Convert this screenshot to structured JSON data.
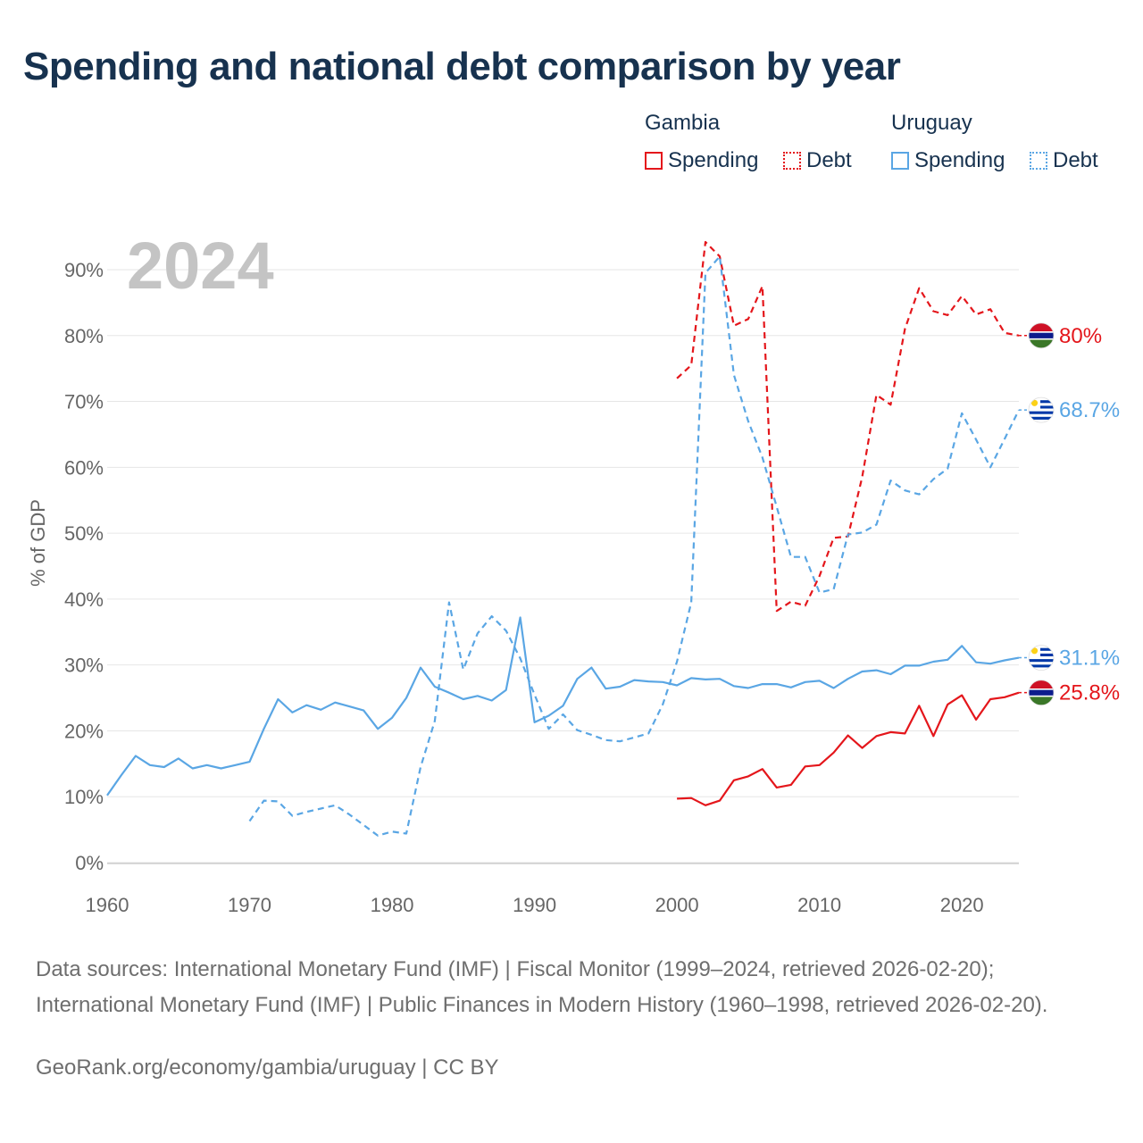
{
  "title": "Spending and national debt comparison by year",
  "legend": {
    "groups": [
      {
        "name": "Gambia",
        "color": "#e4161b",
        "items": [
          {
            "label": "Spending",
            "style": "solid"
          },
          {
            "label": "Debt",
            "style": "dotted"
          }
        ]
      },
      {
        "name": "Uruguay",
        "color": "#5aa6e4",
        "items": [
          {
            "label": "Spending",
            "style": "solid"
          },
          {
            "label": "Debt",
            "style": "dotted"
          }
        ]
      }
    ]
  },
  "sources": "Data sources: International Monetary Fund (IMF) | Fiscal Monitor (1999–2024, retrieved 2026-02-20); International Monetary Fund (IMF) | Public Finances in Modern History (1960–1998, retrieved 2026-02-20).",
  "footer": "GeoRank.org/economy/gambia/uruguay | CC BY",
  "colors": {
    "gambia": "#e4161b",
    "uruguay": "#5aa6e4",
    "title": "#17324f",
    "grid": "#e6e6e6",
    "year": "#c4c4c4"
  },
  "chart_data": {
    "type": "line",
    "year_label": "2024",
    "ylabel": "% of GDP",
    "xlim": [
      1960,
      2024
    ],
    "ylim": [
      0,
      90
    ],
    "xticks": [
      1960,
      1970,
      1980,
      1990,
      2000,
      2010,
      2020
    ],
    "yticks": [
      0,
      10,
      20,
      30,
      40,
      50,
      60,
      70,
      80,
      90
    ],
    "ytick_labels": [
      "0%",
      "10%",
      "20%",
      "30%",
      "40%",
      "50%",
      "60%",
      "70%",
      "80%",
      "90%"
    ],
    "series": [
      {
        "name": "Gambia Debt",
        "country": "gambia",
        "style": "dashed",
        "end_label": "80%",
        "points": [
          [
            2000,
            73.5
          ],
          [
            2001,
            75.5
          ],
          [
            2002,
            94.2
          ],
          [
            2003,
            92.0
          ],
          [
            2004,
            81.5
          ],
          [
            2005,
            82.5
          ],
          [
            2006,
            87.5
          ],
          [
            2007,
            38.2
          ],
          [
            2008,
            39.6
          ],
          [
            2009,
            39.0
          ],
          [
            2010,
            43.5
          ],
          [
            2011,
            49.3
          ],
          [
            2012,
            49.5
          ],
          [
            2013,
            58.5
          ],
          [
            2014,
            71.0
          ],
          [
            2015,
            69.5
          ],
          [
            2016,
            81.0
          ],
          [
            2017,
            87.2
          ],
          [
            2018,
            83.7
          ],
          [
            2019,
            83.1
          ],
          [
            2020,
            86.0
          ],
          [
            2021,
            83.2
          ],
          [
            2022,
            84.0
          ],
          [
            2023,
            80.4
          ],
          [
            2024,
            80.0
          ]
        ]
      },
      {
        "name": "Uruguay Debt",
        "country": "uruguay",
        "style": "dashed",
        "end_label": "68.7%",
        "points": [
          [
            1970,
            6.3
          ],
          [
            1971,
            9.4
          ],
          [
            1972,
            9.3
          ],
          [
            1973,
            7.1
          ],
          [
            1974,
            7.7
          ],
          [
            1975,
            8.2
          ],
          [
            1976,
            8.7
          ],
          [
            1977,
            7.3
          ],
          [
            1978,
            5.7
          ],
          [
            1979,
            4.1
          ],
          [
            1980,
            4.7
          ],
          [
            1981,
            4.4
          ],
          [
            1982,
            14.5
          ],
          [
            1983,
            21.5
          ],
          [
            1984,
            39.5
          ],
          [
            1985,
            29.3
          ],
          [
            1986,
            34.8
          ],
          [
            1987,
            37.4
          ],
          [
            1988,
            35.2
          ],
          [
            1989,
            31.0
          ],
          [
            1990,
            25.5
          ],
          [
            1991,
            20.3
          ],
          [
            1992,
            22.5
          ],
          [
            1993,
            20.1
          ],
          [
            1994,
            19.4
          ],
          [
            1995,
            18.6
          ],
          [
            1996,
            18.4
          ],
          [
            1997,
            19.0
          ],
          [
            1998,
            19.6
          ],
          [
            1999,
            24.0
          ],
          [
            2000,
            30.5
          ],
          [
            2001,
            39.5
          ],
          [
            2002,
            89.5
          ],
          [
            2003,
            92.0
          ],
          [
            2004,
            74.0
          ],
          [
            2005,
            67.0
          ],
          [
            2006,
            61.5
          ],
          [
            2007,
            54.0
          ],
          [
            2008,
            46.4
          ],
          [
            2009,
            46.4
          ],
          [
            2010,
            41.0
          ],
          [
            2011,
            41.5
          ],
          [
            2012,
            49.8
          ],
          [
            2013,
            50.1
          ],
          [
            2014,
            51.3
          ],
          [
            2015,
            58.0
          ],
          [
            2016,
            56.5
          ],
          [
            2017,
            55.9
          ],
          [
            2018,
            58.2
          ],
          [
            2019,
            59.8
          ],
          [
            2020,
            68.2
          ],
          [
            2021,
            64.2
          ],
          [
            2022,
            60.0
          ],
          [
            2023,
            64.3
          ],
          [
            2024,
            68.7
          ]
        ]
      },
      {
        "name": "Uruguay Spending",
        "country": "uruguay",
        "style": "solid",
        "end_label": "31.1%",
        "points": [
          [
            1960,
            10.2
          ],
          [
            1961,
            13.3
          ],
          [
            1962,
            16.2
          ],
          [
            1963,
            14.8
          ],
          [
            1964,
            14.5
          ],
          [
            1965,
            15.8
          ],
          [
            1966,
            14.3
          ],
          [
            1967,
            14.8
          ],
          [
            1968,
            14.3
          ],
          [
            1969,
            14.8
          ],
          [
            1970,
            15.3
          ],
          [
            1971,
            20.3
          ],
          [
            1972,
            24.8
          ],
          [
            1973,
            22.8
          ],
          [
            1974,
            23.9
          ],
          [
            1975,
            23.2
          ],
          [
            1976,
            24.3
          ],
          [
            1977,
            23.7
          ],
          [
            1978,
            23.1
          ],
          [
            1979,
            20.3
          ],
          [
            1980,
            22.0
          ],
          [
            1981,
            25.0
          ],
          [
            1982,
            29.6
          ],
          [
            1983,
            26.7
          ],
          [
            1984,
            25.8
          ],
          [
            1985,
            24.8
          ],
          [
            1986,
            25.3
          ],
          [
            1987,
            24.6
          ],
          [
            1988,
            26.2
          ],
          [
            1989,
            37.2
          ],
          [
            1990,
            21.3
          ],
          [
            1991,
            22.3
          ],
          [
            1992,
            23.8
          ],
          [
            1993,
            27.9
          ],
          [
            1994,
            29.6
          ],
          [
            1995,
            26.4
          ],
          [
            1996,
            26.7
          ],
          [
            1997,
            27.7
          ],
          [
            1998,
            27.5
          ],
          [
            1999,
            27.4
          ],
          [
            2000,
            26.9
          ],
          [
            2001,
            28.0
          ],
          [
            2002,
            27.8
          ],
          [
            2003,
            27.9
          ],
          [
            2004,
            26.8
          ],
          [
            2005,
            26.5
          ],
          [
            2006,
            27.1
          ],
          [
            2007,
            27.1
          ],
          [
            2008,
            26.6
          ],
          [
            2009,
            27.4
          ],
          [
            2010,
            27.6
          ],
          [
            2011,
            26.5
          ],
          [
            2012,
            27.9
          ],
          [
            2013,
            29.0
          ],
          [
            2014,
            29.2
          ],
          [
            2015,
            28.6
          ],
          [
            2016,
            29.9
          ],
          [
            2017,
            29.9
          ],
          [
            2018,
            30.5
          ],
          [
            2019,
            30.8
          ],
          [
            2020,
            32.9
          ],
          [
            2021,
            30.4
          ],
          [
            2022,
            30.2
          ],
          [
            2023,
            30.7
          ],
          [
            2024,
            31.1
          ]
        ]
      },
      {
        "name": "Gambia Spending",
        "country": "gambia",
        "style": "solid",
        "end_label": "25.8%",
        "points": [
          [
            2000,
            9.7
          ],
          [
            2001,
            9.8
          ],
          [
            2002,
            8.7
          ],
          [
            2003,
            9.4
          ],
          [
            2004,
            12.5
          ],
          [
            2005,
            13.1
          ],
          [
            2006,
            14.2
          ],
          [
            2007,
            11.4
          ],
          [
            2008,
            11.8
          ],
          [
            2009,
            14.6
          ],
          [
            2010,
            14.8
          ],
          [
            2011,
            16.7
          ],
          [
            2012,
            19.3
          ],
          [
            2013,
            17.4
          ],
          [
            2014,
            19.2
          ],
          [
            2015,
            19.8
          ],
          [
            2016,
            19.6
          ],
          [
            2017,
            23.8
          ],
          [
            2018,
            19.2
          ],
          [
            2019,
            24.0
          ],
          [
            2020,
            25.4
          ],
          [
            2021,
            21.7
          ],
          [
            2022,
            24.8
          ],
          [
            2023,
            25.1
          ],
          [
            2024,
            25.8
          ]
        ]
      }
    ]
  }
}
